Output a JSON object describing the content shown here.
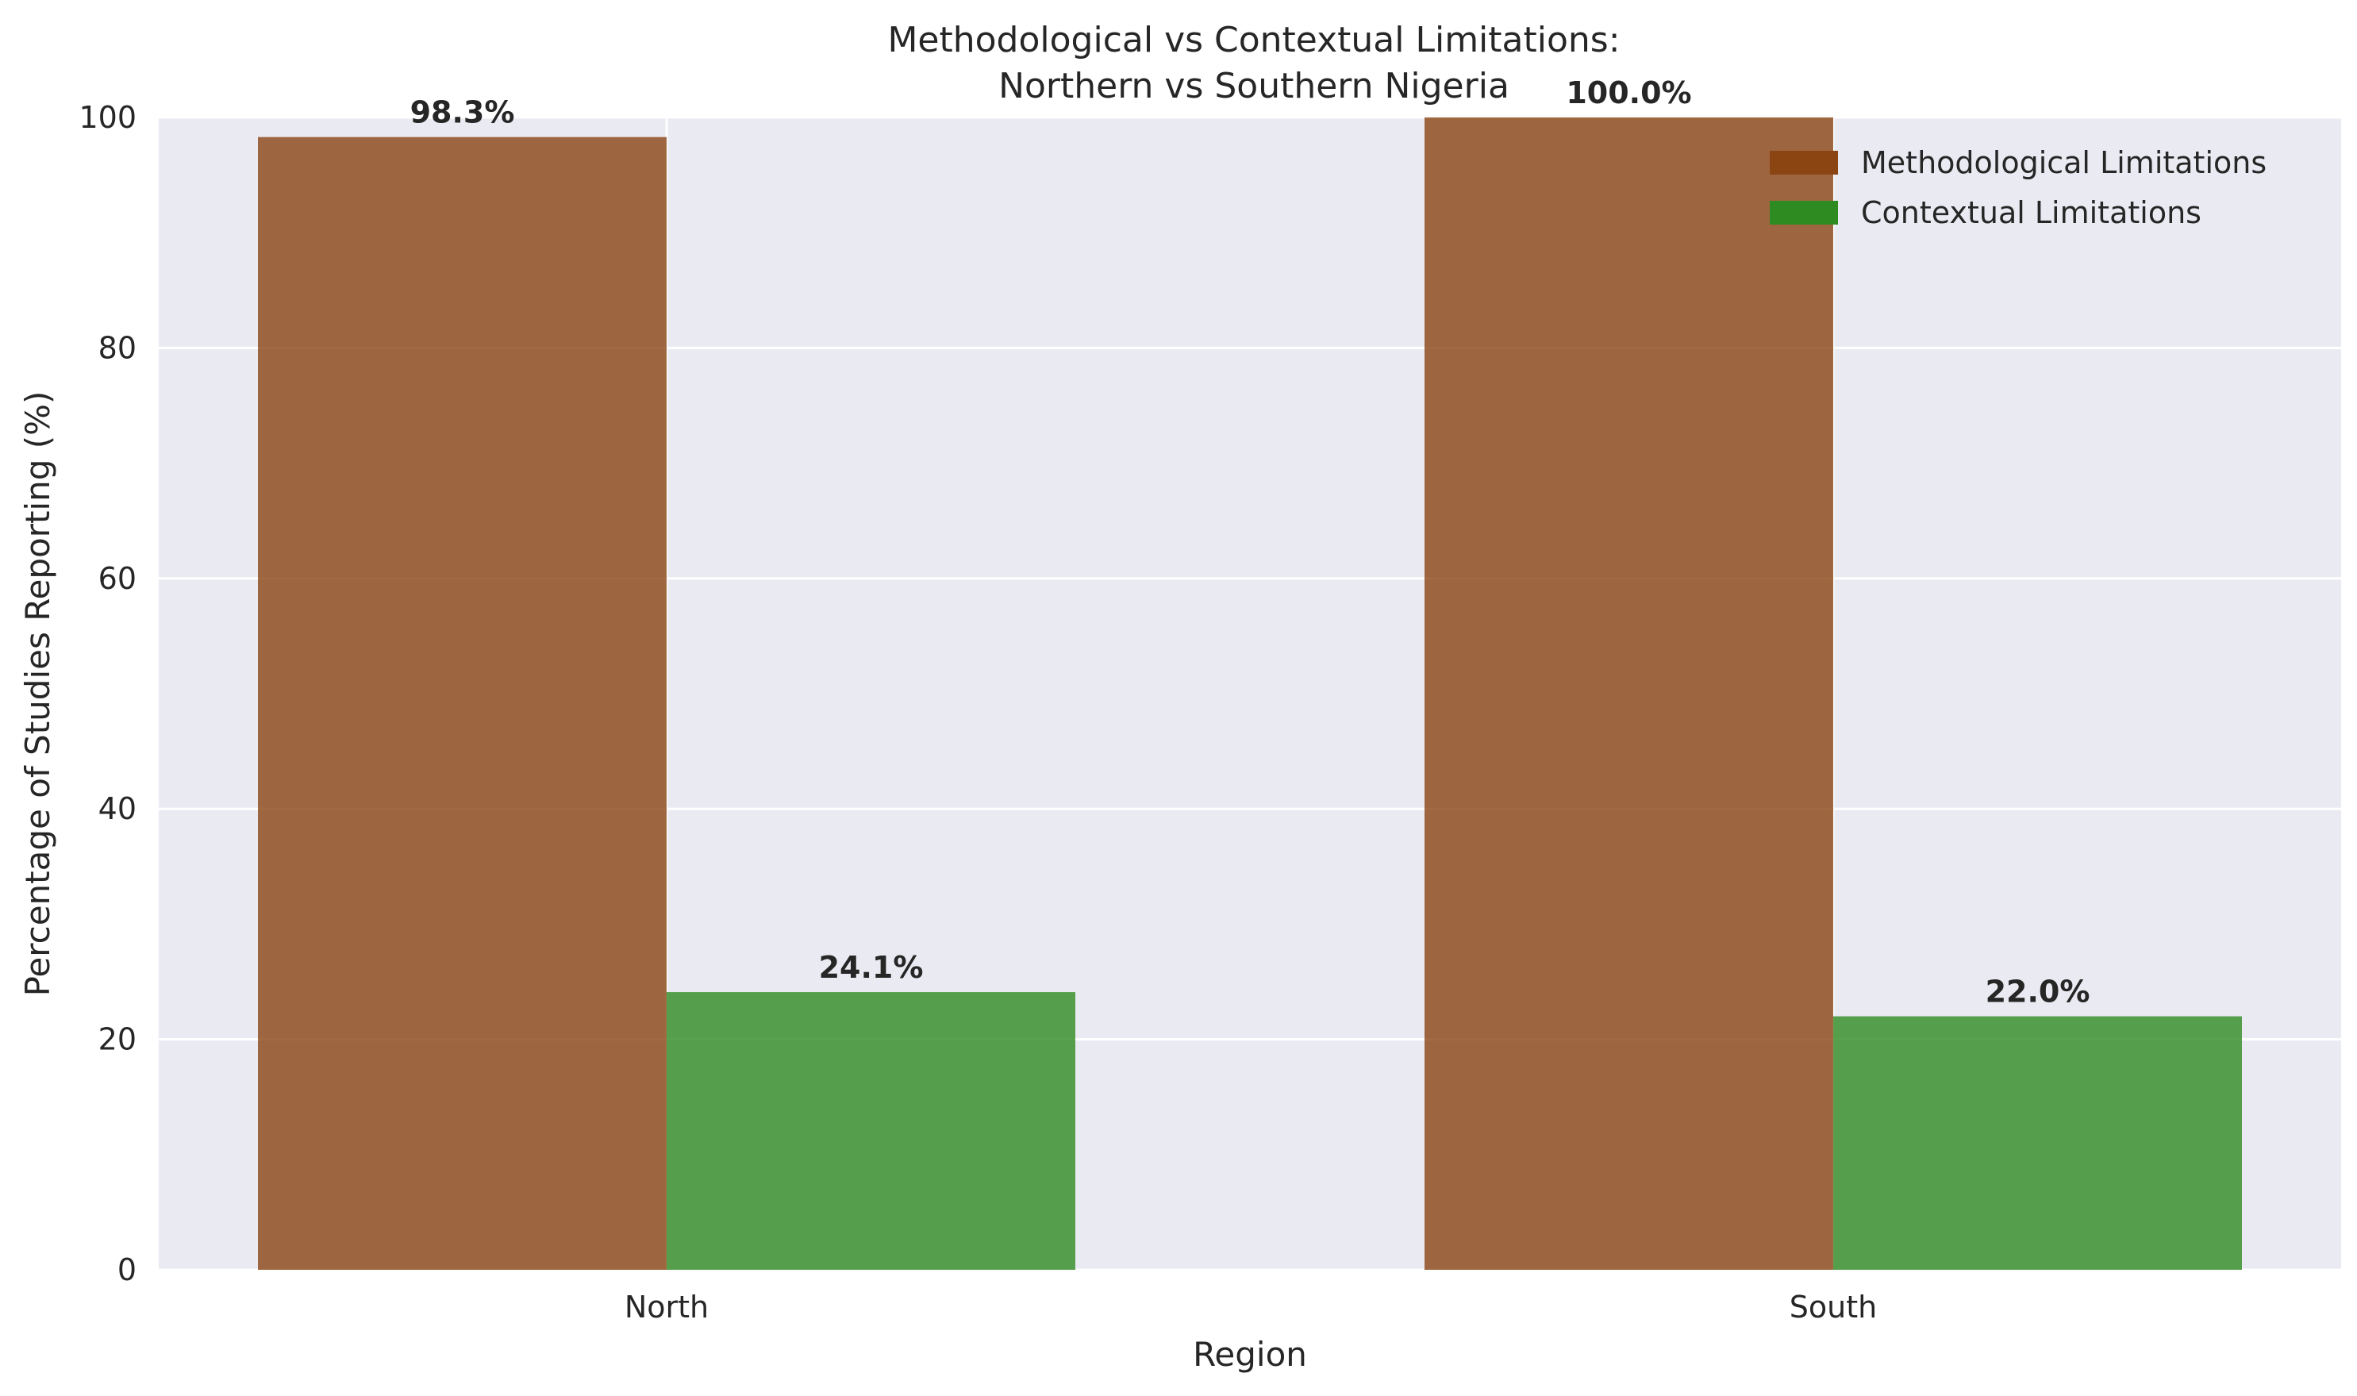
{
  "chart_data": {
    "type": "bar",
    "title_line1": "Methodological vs Contextual Limitations:",
    "title_line2": "Northern vs Southern Nigeria",
    "xlabel": "Region",
    "ylabel": "Percentage of Studies Reporting (%)",
    "categories": [
      "North",
      "South"
    ],
    "series": [
      {
        "name": "Methodological Limitations",
        "values": [
          98.3,
          100.0
        ],
        "labels": [
          "98.3%",
          "100.0%"
        ],
        "color": "#8B4513"
      },
      {
        "name": "Contextual Limitations",
        "values": [
          24.1,
          22.0
        ],
        "labels": [
          "24.1%",
          "22.0%"
        ],
        "color": "#2E8B22"
      }
    ],
    "ylim": [
      0,
      100
    ],
    "yticks": [
      0,
      20,
      40,
      60,
      80,
      100
    ],
    "grid": true,
    "legend_position": "top-right",
    "background": "#EAEAF2"
  }
}
